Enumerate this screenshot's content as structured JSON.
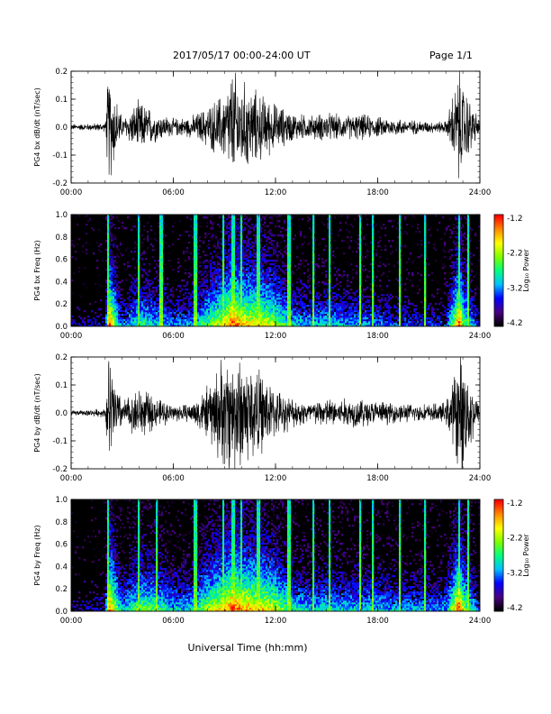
{
  "header": {
    "title": "2017/05/17  00:00-24:00 UT",
    "page": "Page 1/1"
  },
  "footer": {
    "xlabel": "Universal Time (hh:mm)"
  },
  "colorbar": {
    "label": "Log₁₀ Power",
    "ticks": [
      "-1.2",
      "-2.2",
      "-3.2",
      "-4.2"
    ],
    "range": [
      -4.2,
      -1.2
    ],
    "colors": [
      "#000000",
      "#4b0082",
      "#0000ff",
      "#00bfff",
      "#00ff7f",
      "#7fff00",
      "#ffff00",
      "#ff8c00",
      "#ff0000"
    ]
  },
  "chart_data": [
    {
      "type": "line",
      "panel": "bx-waveform",
      "ylabel": "PG4 bx dB/dt (nT/sec)",
      "xlim": [
        0,
        24
      ],
      "ylim": [
        -0.2,
        0.2
      ],
      "yticks": [
        "0.2",
        "0.1",
        "0.0",
        "-0.1",
        "-0.2"
      ],
      "xticks": [
        "00:00",
        "06:00",
        "12:00",
        "18:00",
        "24:00"
      ],
      "x": [
        0,
        1,
        2,
        2.2,
        3,
        4,
        5,
        6,
        7,
        8,
        9,
        9.5,
        10,
        11,
        12,
        13,
        14,
        15,
        16,
        17,
        18,
        19,
        20,
        21,
        22,
        22.8,
        23,
        24
      ],
      "amplitude": [
        0.01,
        0.012,
        0.015,
        0.2,
        0.03,
        0.09,
        0.05,
        0.03,
        0.035,
        0.07,
        0.12,
        0.2,
        0.16,
        0.12,
        0.08,
        0.05,
        0.04,
        0.05,
        0.04,
        0.045,
        0.035,
        0.03,
        0.025,
        0.02,
        0.02,
        0.2,
        0.15,
        0.02
      ]
    },
    {
      "type": "heatmap",
      "panel": "bx-spectrogram",
      "ylabel": "PG4 bx Freq (Hz)",
      "xlim": [
        0,
        24
      ],
      "ylim": [
        0,
        1.0
      ],
      "yticks": [
        "1.0",
        "0.8",
        "0.6",
        "0.4",
        "0.2",
        "0.0"
      ],
      "xticks": [
        "00:00",
        "06:00",
        "12:00",
        "18:00",
        "24:00"
      ],
      "x": [
        0,
        1,
        2,
        2.2,
        3,
        4,
        5,
        6,
        7,
        8,
        9,
        9.5,
        10,
        11,
        12,
        13,
        14,
        15,
        16,
        17,
        18,
        19,
        20,
        21,
        22,
        22.8,
        23,
        24
      ],
      "activity": [
        0.15,
        0.18,
        0.2,
        1.0,
        0.3,
        0.55,
        0.45,
        0.35,
        0.4,
        0.6,
        0.8,
        1.0,
        0.85,
        0.8,
        0.7,
        0.45,
        0.4,
        0.45,
        0.4,
        0.4,
        0.35,
        0.3,
        0.28,
        0.25,
        0.25,
        1.0,
        0.7,
        0.2
      ],
      "spikes": [
        2.2,
        4.0,
        5.3,
        7.3,
        8.9,
        9.5,
        10.0,
        11.0,
        12.8,
        14.2,
        15.2,
        17.0,
        17.7,
        19.3,
        20.8,
        22.8,
        23.3
      ]
    },
    {
      "type": "line",
      "panel": "by-waveform",
      "ylabel": "PG4 by dB/dt (nT/sec)",
      "xlim": [
        0,
        24
      ],
      "ylim": [
        -0.2,
        0.2
      ],
      "yticks": [
        "0.2",
        "0.1",
        "0.0",
        "-0.1",
        "-0.2"
      ],
      "xticks": [
        "00:00",
        "06:00",
        "12:00",
        "18:00",
        "24:00"
      ],
      "x": [
        0,
        1,
        2,
        2.2,
        3,
        4,
        5,
        6,
        7,
        8,
        9,
        9.5,
        10,
        11,
        12,
        13,
        14,
        15,
        16,
        17,
        18,
        19,
        20,
        21,
        22,
        22.8,
        23,
        24
      ],
      "amplitude": [
        0.008,
        0.01,
        0.015,
        0.2,
        0.04,
        0.09,
        0.05,
        0.03,
        0.03,
        0.09,
        0.2,
        0.2,
        0.2,
        0.15,
        0.08,
        0.05,
        0.04,
        0.05,
        0.05,
        0.05,
        0.04,
        0.035,
        0.03,
        0.03,
        0.035,
        0.2,
        0.2,
        0.02
      ]
    },
    {
      "type": "heatmap",
      "panel": "by-spectrogram",
      "ylabel": "PG4 by Freq (Hz)",
      "xlim": [
        0,
        24
      ],
      "ylim": [
        0,
        1.0
      ],
      "yticks": [
        "1.0",
        "0.8",
        "0.6",
        "0.4",
        "0.2",
        "0.0"
      ],
      "xticks": [
        "00:00",
        "06:00",
        "12:00",
        "18:00",
        "24:00"
      ],
      "x": [
        0,
        1,
        2,
        2.2,
        3,
        4,
        5,
        6,
        7,
        8,
        9,
        9.5,
        10,
        11,
        12,
        13,
        14,
        15,
        16,
        17,
        18,
        19,
        20,
        21,
        22,
        22.8,
        23,
        24
      ],
      "activity": [
        0.15,
        0.18,
        0.2,
        1.0,
        0.4,
        0.65,
        0.6,
        0.45,
        0.45,
        0.7,
        0.85,
        1.0,
        0.9,
        0.85,
        0.75,
        0.5,
        0.45,
        0.5,
        0.45,
        0.45,
        0.45,
        0.4,
        0.4,
        0.38,
        0.38,
        1.0,
        0.75,
        0.25
      ],
      "spikes": [
        2.2,
        4.0,
        5.0,
        7.3,
        8.9,
        9.5,
        10.0,
        11.0,
        12.8,
        14.2,
        15.2,
        17.0,
        17.7,
        19.3,
        20.8,
        22.8,
        23.3
      ]
    }
  ]
}
